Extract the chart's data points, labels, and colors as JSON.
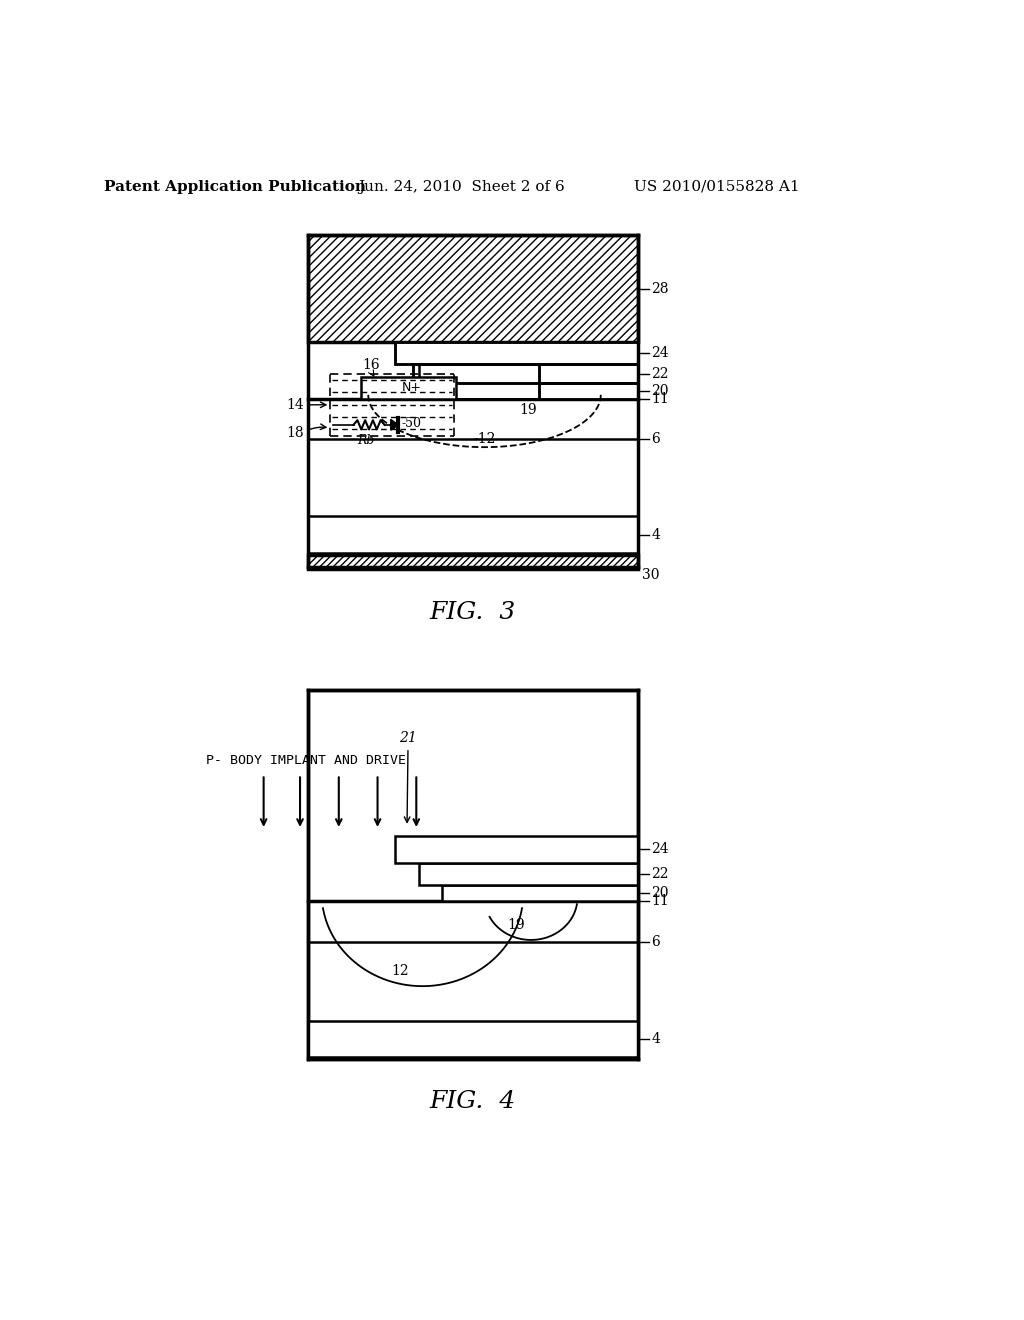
{
  "bg_color": "#ffffff",
  "header_text1": "Patent Application Publication",
  "header_text2": "Jun. 24, 2010  Sheet 2 of 6",
  "header_text3": "US 2010/0155828 A1",
  "fig3_title": "FIG.  3",
  "fig4_title": "FIG.  4",
  "fig4_label": "P- BODY IMPLANT AND DRIVE"
}
